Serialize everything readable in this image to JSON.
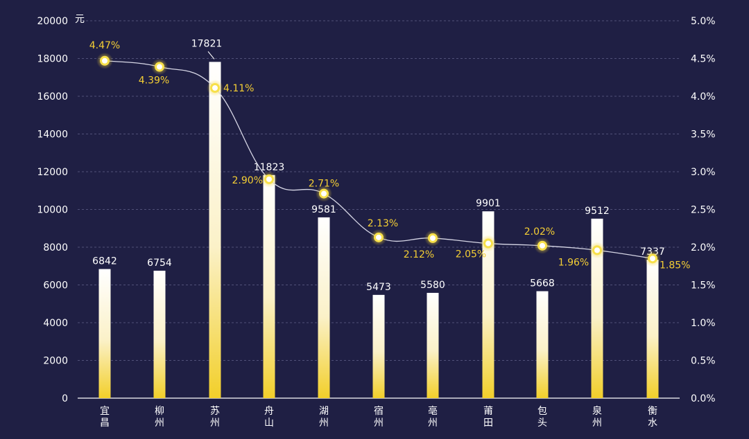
{
  "chart_data": {
    "type": "bar",
    "title": "",
    "categories": [
      "宜昌",
      "柳州",
      "苏州",
      "舟山",
      "湖州",
      "宿州",
      "亳州",
      "莆田",
      "包头",
      "泉州",
      "衡水"
    ],
    "series": [
      {
        "name": "bar",
        "type": "bar",
        "axis": "left",
        "values": [
          6842,
          6754,
          17821,
          11823,
          9581,
          5473,
          5580,
          9901,
          5668,
          9512,
          7337
        ],
        "labels": [
          "6842",
          "6754",
          "17821",
          "11823",
          "9581",
          "5473",
          "5580",
          "9901",
          "5668",
          "9512",
          "7337"
        ]
      },
      {
        "name": "line",
        "type": "line",
        "axis": "right",
        "values": [
          4.47,
          4.39,
          4.11,
          2.9,
          2.71,
          2.13,
          2.12,
          2.05,
          2.02,
          1.96,
          1.85
        ],
        "labels": [
          "4.47%",
          "4.39%",
          "4.11%",
          "2.90%",
          "2.71%",
          "2.13%",
          "2.12%",
          "2.05%",
          "2.02%",
          "1.96%",
          "1.85%"
        ]
      }
    ],
    "ylabel": "元",
    "ylim": [
      0,
      20000
    ],
    "y_ticks": [
      "0",
      "2000",
      "4000",
      "6000",
      "8000",
      "10000",
      "12000",
      "14000",
      "16000",
      "18000",
      "20000"
    ],
    "y2lim": [
      0,
      5.0
    ],
    "y2_ticks": [
      "0.0%",
      "0.5%",
      "1.0%",
      "1.5%",
      "2.0%",
      "2.5%",
      "3.0%",
      "3.5%",
      "4.0%",
      "4.5%",
      "5.0%"
    ],
    "grid": true
  },
  "colors": {
    "background": "#1f1f44",
    "bar_top": "#ffffff",
    "bar_bottom": "#f2cf2a",
    "line": "#d7d7e6",
    "point": "#f7e04a",
    "pct_text": "#f5cf34"
  }
}
